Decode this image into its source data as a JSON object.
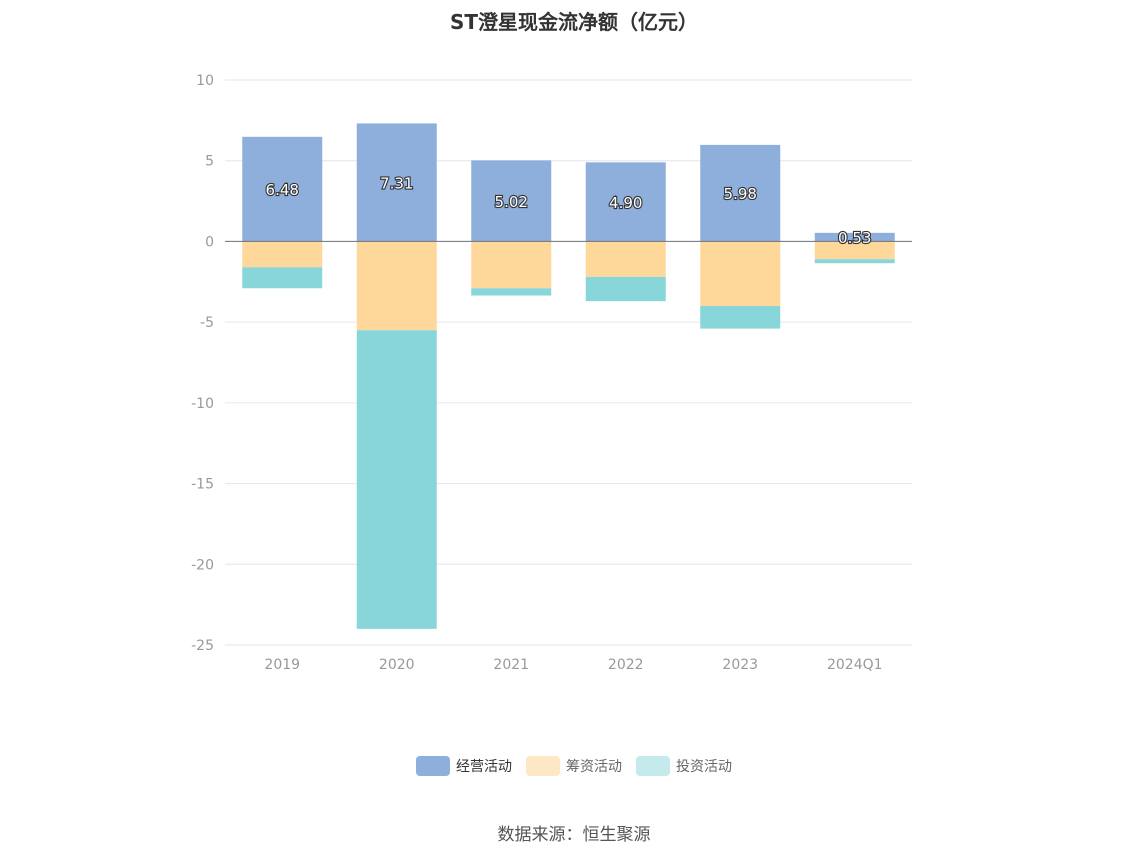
{
  "chart_data": {
    "type": "bar",
    "title": "ST澄星现金流净额（亿元）",
    "categories": [
      "2019",
      "2020",
      "2021",
      "2022",
      "2023",
      "2024Q1"
    ],
    "series": [
      {
        "name": "经营活动",
        "color": "#8eaedc",
        "values": [
          6.48,
          7.31,
          5.02,
          4.9,
          5.98,
          0.53
        ]
      },
      {
        "name": "筹资活动",
        "color": "#fdd89a",
        "values": [
          -1.6,
          -5.5,
          -2.9,
          -2.2,
          -4.0,
          -1.1
        ]
      },
      {
        "name": "投资活动",
        "color": "#88d6d9",
        "values": [
          -1.3,
          -18.5,
          -0.45,
          -1.5,
          -1.4,
          -0.25
        ]
      }
    ],
    "data_labels": [
      "6.48",
      "7.31",
      "5.02",
      "4.90",
      "5.98",
      "0.53"
    ],
    "yticks": [
      10,
      5,
      0,
      -5,
      -10,
      -15,
      -20,
      -25
    ],
    "ylim": [
      -25,
      10
    ],
    "stacked": true,
    "grid": true,
    "legend_position": "bottom"
  },
  "legend": [
    "经营活动",
    "筹资活动",
    "投资活动"
  ],
  "source": "数据来源：恒生聚源"
}
